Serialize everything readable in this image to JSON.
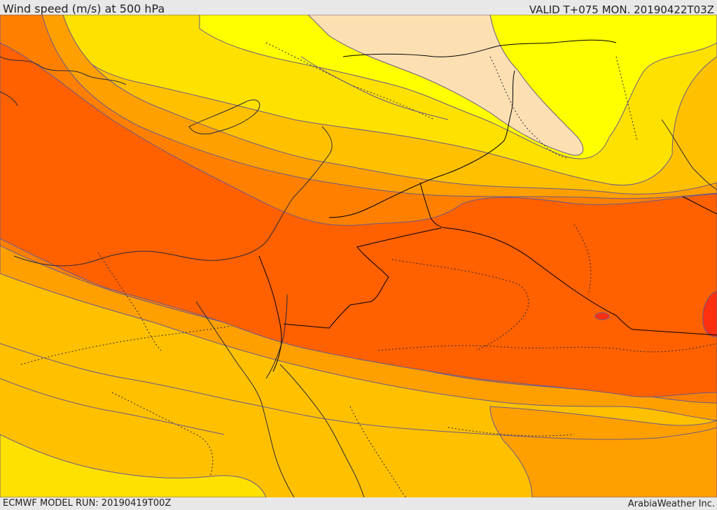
{
  "header": {
    "title": "Wind speed (m/s) at 500 hPa",
    "valid_time": "VALID T+075 MON. 20190422T03Z"
  },
  "footer": {
    "model_run": "ECMWF MODEL RUN: 20190419T00Z",
    "credit": "ArabiaWeather Inc."
  },
  "colors": {
    "band_light_peach": "#fde0b2",
    "band_yellow": "#ffff00",
    "band_gold": "#ffe100",
    "band_amber": "#ffc000",
    "band_orange": "#ffa000",
    "band_dark_orange": "#ff8000",
    "band_red_orange": "#ff6000",
    "band_red": "#ff3010",
    "contour_line": "#6a5a8a",
    "border_line": "#000000"
  }
}
